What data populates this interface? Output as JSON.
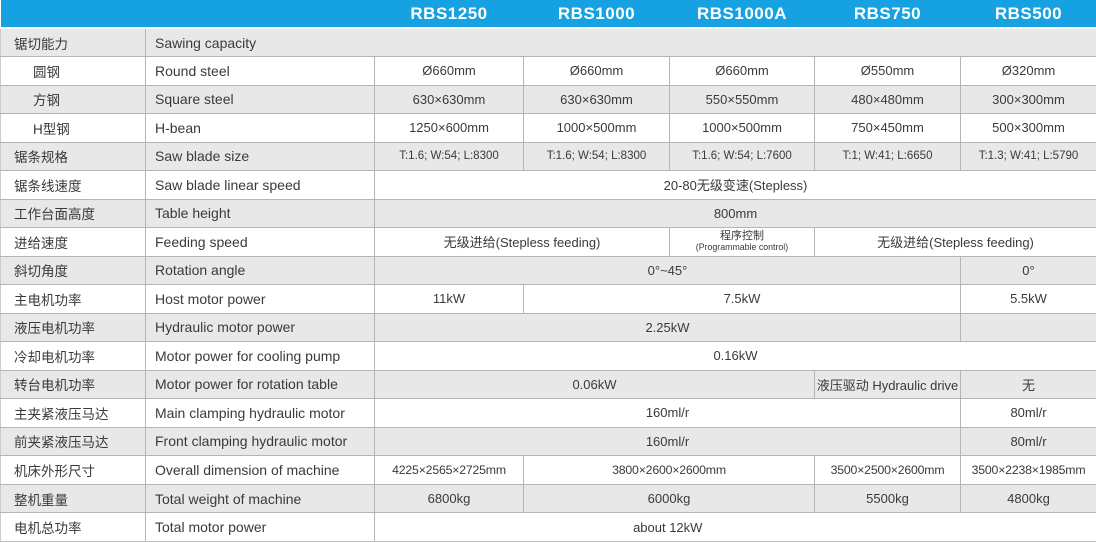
{
  "title": "Band sawing machine specification table",
  "colors": {
    "header_bg": "#16A1E3",
    "header_text": "#FFFFFF",
    "shaded_row_bg": "#E8E8E8",
    "border": "#B5B5B5",
    "text": "#3A3A3A"
  },
  "header": {
    "models": [
      "RBS1250",
      "RBS1000",
      "RBS1000A",
      "RBS750",
      "RBS500"
    ]
  },
  "rows": [
    {
      "cn": "锯切能力",
      "en": "Sawing capacity",
      "en_full": true,
      "cells": []
    },
    {
      "cn": "圆钢",
      "en": "Round steel",
      "indent": true,
      "cells": [
        {
          "t": "Ø660mm"
        },
        {
          "t": "Ø660mm"
        },
        {
          "t": "Ø660mm"
        },
        {
          "t": "Ø550mm"
        },
        {
          "t": "Ø320mm"
        }
      ]
    },
    {
      "cn": "方钢",
      "en": "Square steel",
      "indent": true,
      "cells": [
        {
          "t": "630×630mm"
        },
        {
          "t": "630×630mm"
        },
        {
          "t": "550×550mm"
        },
        {
          "t": "480×480mm"
        },
        {
          "t": "300×300mm"
        }
      ]
    },
    {
      "cn": "H型钢",
      "en": "H-bean",
      "indent": true,
      "cells": [
        {
          "t": "1250×600mm"
        },
        {
          "t": "1000×500mm"
        },
        {
          "t": "1000×500mm"
        },
        {
          "t": "750×450mm"
        },
        {
          "t": "500×300mm"
        }
      ]
    },
    {
      "cn": "锯条规格",
      "en": "Saw blade size",
      "small": true,
      "cells": [
        {
          "t": "T:1.6; W:54; L:8300"
        },
        {
          "t": "T:1.6; W:54; L:8300"
        },
        {
          "t": "T:1.6; W:54; L:7600"
        },
        {
          "t": "T:1; W:41; L:6650"
        },
        {
          "t": "T:1.3; W:41; L:5790"
        }
      ]
    },
    {
      "cn": "锯条线速度",
      "en": "Saw blade linear speed",
      "cells": [
        {
          "t": "20-80无级变速(Stepless)",
          "span": 5
        }
      ]
    },
    {
      "cn": "工作台面高度",
      "en": "Table height",
      "cells": [
        {
          "t": "800mm",
          "span": 5
        }
      ]
    },
    {
      "cn": "进给速度",
      "en": "Feeding speed",
      "cells": [
        {
          "t": "无级进给(Stepless feeding)",
          "span": 2
        },
        {
          "t": "程序控制",
          "sub": "(Programmable control)"
        },
        {
          "t": "无级进给(Stepless feeding)",
          "span": 2
        }
      ]
    },
    {
      "cn": "斜切角度",
      "en": "Rotation angle",
      "cells": [
        {
          "t": "0°~45°",
          "span": 4
        },
        {
          "t": "0°"
        }
      ]
    },
    {
      "cn": "主电机功率",
      "en": "Host motor power",
      "cells": [
        {
          "t": "11kW"
        },
        {
          "t": "7.5kW",
          "span": 3
        },
        {
          "t": "5.5kW"
        }
      ]
    },
    {
      "cn": "液压电机功率",
      "en": "Hydraulic motor power",
      "cells": [
        {
          "t": "2.25kW",
          "span": 4
        },
        {
          "t": ""
        }
      ]
    },
    {
      "cn": "冷却电机功率",
      "en": "Motor power for cooling pump",
      "cells": [
        {
          "t": "0.16kW",
          "span": 5
        }
      ]
    },
    {
      "cn": "转台电机功率",
      "en": "Motor power for rotation table",
      "cells": [
        {
          "t": "0.06kW",
          "span": 3
        },
        {
          "t": "液压驱动 Hydraulic drive"
        },
        {
          "t": "无"
        }
      ]
    },
    {
      "cn": "主夹紧液压马达",
      "en": "Main clamping hydraulic motor",
      "cells": [
        {
          "t": "160ml/r",
          "span": 4
        },
        {
          "t": "80ml/r"
        }
      ]
    },
    {
      "cn": "前夹紧液压马达",
      "en": "Front clamping hydraulic motor",
      "cells": [
        {
          "t": "160ml/r",
          "span": 4
        },
        {
          "t": "80ml/r"
        }
      ]
    },
    {
      "cn": "机床外形尺寸",
      "en": "Overall dimension of machine",
      "dim": true,
      "cells": [
        {
          "t": "4225×2565×2725mm"
        },
        {
          "t": "3800×2600×2600mm",
          "span": 2
        },
        {
          "t": "3500×2500×2600mm"
        },
        {
          "t": "3500×2238×1985mm"
        }
      ]
    },
    {
      "cn": "整机重量",
      "en": "Total weight of machine",
      "cells": [
        {
          "t": "6800kg"
        },
        {
          "t": "6000kg",
          "span": 2
        },
        {
          "t": "5500kg"
        },
        {
          "t": "4800kg"
        }
      ]
    },
    {
      "cn": "电机总功率",
      "en": "Total motor power",
      "cells": [
        {
          "t": "about 12kW",
          "span": 4,
          "edge": "no-r"
        },
        {
          "t": "",
          "edge": "no-lr"
        }
      ]
    }
  ]
}
